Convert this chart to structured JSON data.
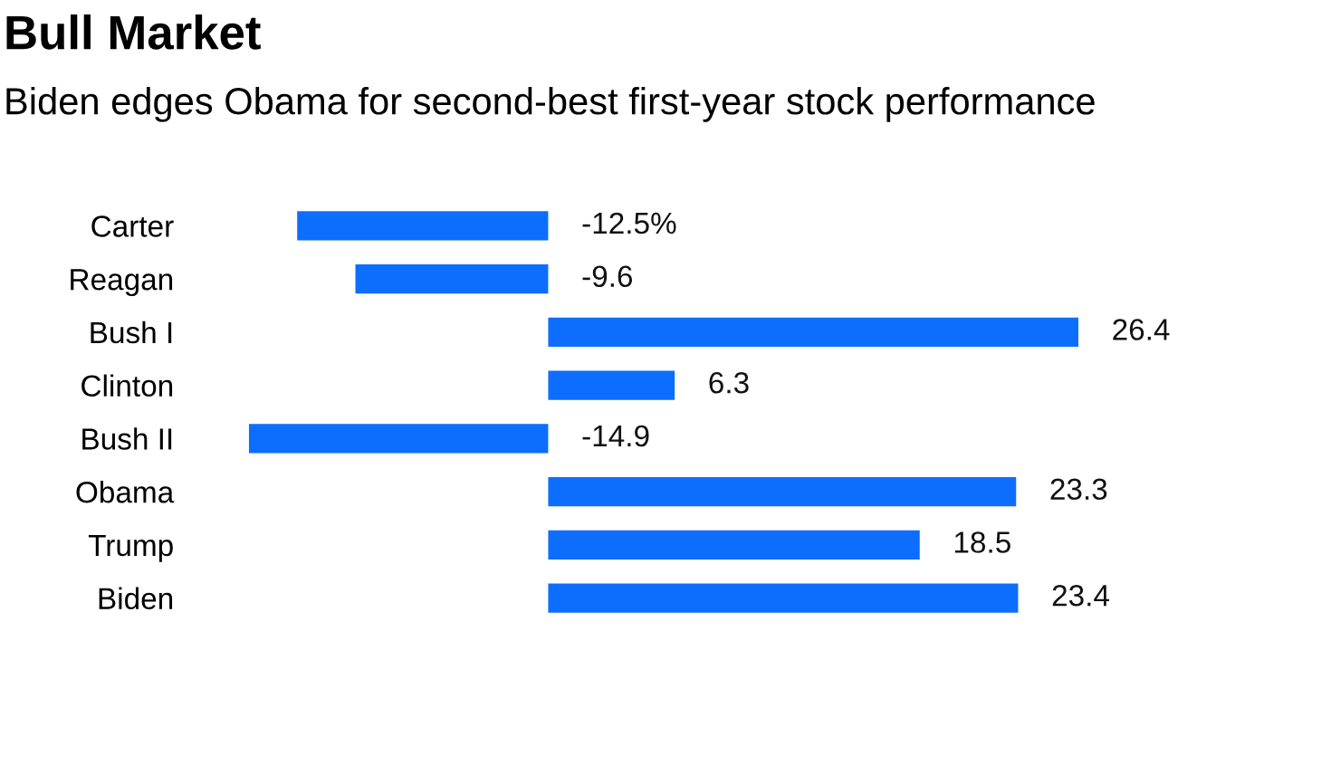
{
  "chart_data": {
    "type": "bar",
    "orientation": "horizontal",
    "title": "Bull Market",
    "subtitle": "Biden edges Obama for second-best first-year stock performance",
    "categories": [
      "Carter",
      "Reagan",
      "Bush I",
      "Clinton",
      "Bush II",
      "Obama",
      "Trump",
      "Biden"
    ],
    "series": [
      {
        "color": "#0d6efd",
        "values": [
          -12.5,
          -9.6,
          26.4,
          6.3,
          -14.9,
          23.3,
          18.5,
          23.4
        ],
        "value_labels": [
          "-12.5%",
          "-9.6",
          "26.4",
          "6.3",
          "-14.9",
          "23.3",
          "18.5",
          "23.4"
        ]
      }
    ]
  }
}
